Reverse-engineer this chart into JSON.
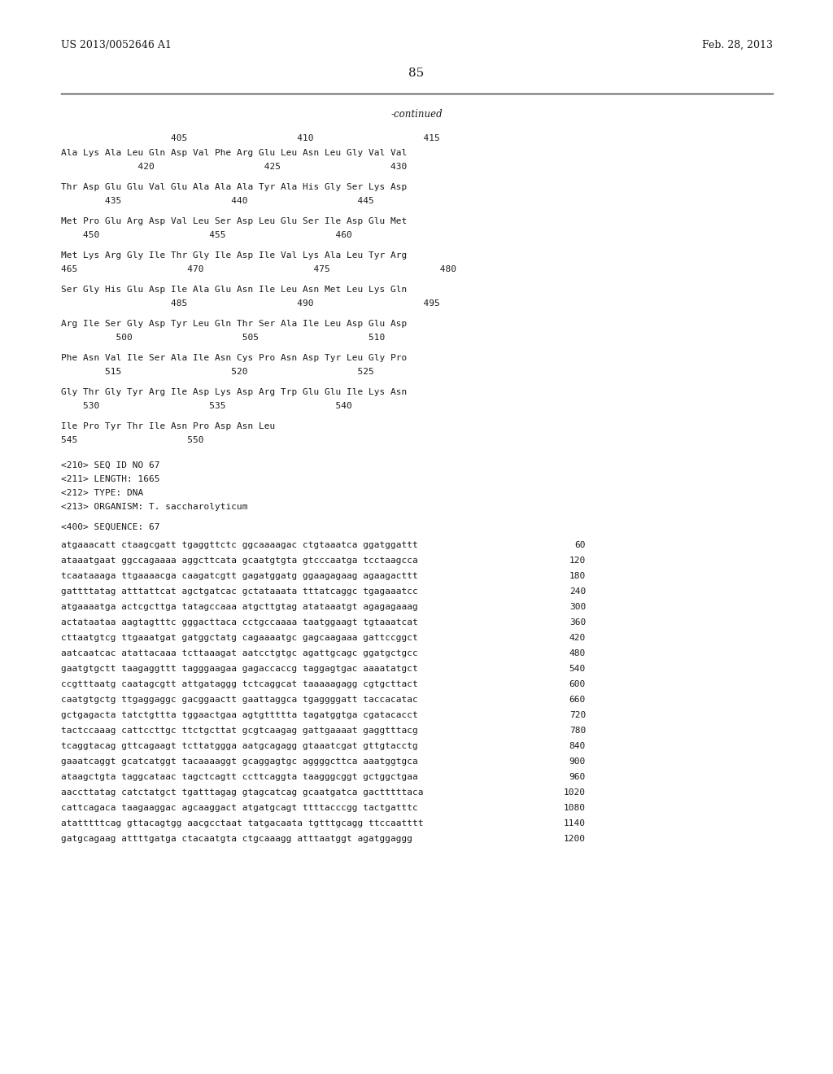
{
  "background_color": "#ffffff",
  "header_left": "US 2013/0052646 A1",
  "header_right": "Feb. 28, 2013",
  "page_number": "85",
  "continued_label": "-continued",
  "aa_pos_row": "                    405                    410                    415",
  "aa_lines": [
    "Ala Lys Ala Leu Gln Asp Val Phe Arg Glu Leu Asn Leu Gly Val Val",
    "              420                    425                    430",
    "",
    "Thr Asp Glu Glu Val Glu Ala Ala Ala Tyr Ala His Gly Ser Lys Asp",
    "        435                    440                    445",
    "",
    "Met Pro Glu Arg Asp Val Leu Ser Asp Leu Glu Ser Ile Asp Glu Met",
    "    450                    455                    460",
    "",
    "Met Lys Arg Gly Ile Thr Gly Ile Asp Ile Val Lys Ala Leu Tyr Arg",
    "465                    470                    475                    480",
    "",
    "Ser Gly His Glu Asp Ile Ala Glu Asn Ile Leu Asn Met Leu Lys Gln",
    "                    485                    490                    495",
    "",
    "Arg Ile Ser Gly Asp Tyr Leu Gln Thr Ser Ala Ile Leu Asp Glu Asp",
    "          500                    505                    510",
    "",
    "Phe Asn Val Ile Ser Ala Ile Asn Cys Pro Asn Asp Tyr Leu Gly Pro",
    "        515                    520                    525",
    "",
    "Gly Thr Gly Tyr Arg Ile Asp Lys Asp Arg Trp Glu Glu Ile Lys Asn",
    "    530                    535                    540",
    "",
    "Ile Pro Tyr Thr Ile Asn Pro Asp Asn Leu",
    "545                    550"
  ],
  "seq_info": [
    "<210> SEQ ID NO 67",
    "<211> LENGTH: 1665",
    "<212> TYPE: DNA",
    "<213> ORGANISM: T. saccharolyticum"
  ],
  "seq_label": "<400> SEQUENCE: 67",
  "dna_lines": [
    [
      "atgaaacatt ctaagcgatt tgaggttctc ggcaaaagac ctgtaaatca ggatggattt",
      "60"
    ],
    [
      "ataaatgaat ggccagaaaa aggcttcata gcaatgtgta gtcccaatga tcctaagcca",
      "120"
    ],
    [
      "tcaataaaga ttgaaaacga caagatcgtt gagatggatg ggaagagaag agaagacttt",
      "180"
    ],
    [
      "gattttatag atttattcat agctgatcac gctataaata tttatcaggc tgagaaatcc",
      "240"
    ],
    [
      "atgaaaatga actcgcttga tatagccaaa atgcttgtag atataaatgt agagagaaag",
      "300"
    ],
    [
      "actataataa aagtagtttc gggacttaca cctgccaaaa taatggaagt tgtaaatcat",
      "360"
    ],
    [
      "cttaatgtcg ttgaaatgat gatggctatg cagaaaatgc gagcaagaaa gattccggct",
      "420"
    ],
    [
      "aatcaatcac atattacaaa tcttaaagat aatcctgtgc agattgcagc ggatgctgcc",
      "480"
    ],
    [
      "gaatgtgctt taagaggttt tagggaagaa gagaccaccg taggagtgac aaaatatgct",
      "540"
    ],
    [
      "ccgtttaatg caatagcgtt attgataggg tctcaggcat taaaaagagg cgtgcttact",
      "600"
    ],
    [
      "caatgtgctg ttgaggaggc gacggaactt gaattaggca tgaggggatt taccacatac",
      "660"
    ],
    [
      "gctgagacta tatctgttta tggaactgaa agtgttttta tagatggtga cgatacacct",
      "720"
    ],
    [
      "tactccaaag cattccttgc ttctgcttat gcgtcaagag gattgaaaat gaggtttacg",
      "780"
    ],
    [
      "tcaggtacag gttcagaagt tcttatggga aatgcagagg gtaaatcgat gttgtacctg",
      "840"
    ],
    [
      "gaaatcaggt gcatcatggt tacaaaaggt gcaggagtgc aggggcttca aaatggtgca",
      "900"
    ],
    [
      "ataagctgta taggcataac tagctcagtt ccttcaggta taagggcggt gctggctgaa",
      "960"
    ],
    [
      "aaccttatag catctatgct tgatttagag gtagcatcag gcaatgatca gactttttaca",
      "1020"
    ],
    [
      "cattcagaca taagaaggac agcaaggact atgatgcagt ttttacccgg tactgatttc",
      "1080"
    ],
    [
      "atatttttcag gttacagtgg aacgcctaat tatgacaata tgtttgcagg ttccaatttt",
      "1140"
    ],
    [
      "gatgcagaag attttgatga ctacaatgta ctgcaaagg atttaatggt agatggaggg",
      "1200"
    ]
  ]
}
